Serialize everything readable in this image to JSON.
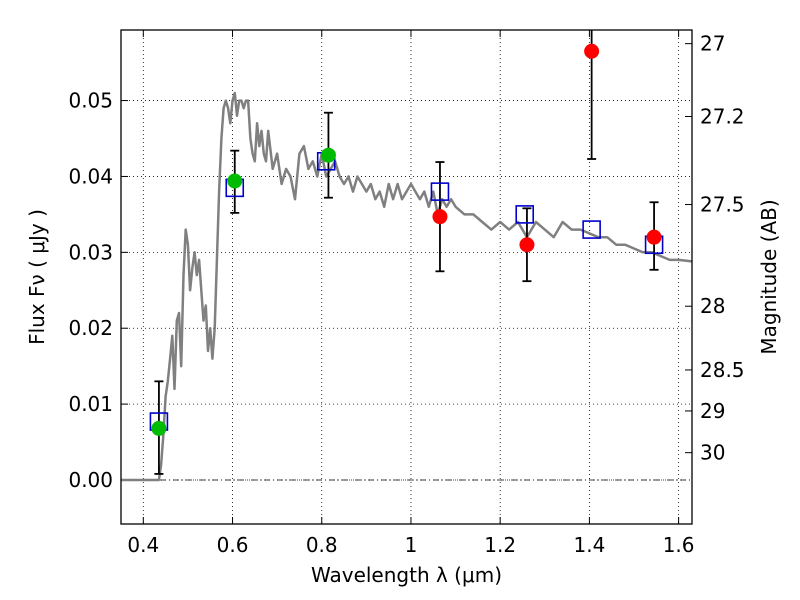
{
  "chart_data": {
    "type": "scatter",
    "xlabel": "Wavelength  λ (μm)",
    "ylabel": "Flux  Fν  ( μJy )",
    "ylabel_right": "Magnitude (AB)",
    "xlim": [
      0.35,
      1.63
    ],
    "ylim": [
      -0.0058,
      0.0593
    ],
    "grid": true,
    "x_ticks": [
      0.4,
      0.6,
      0.8,
      1.0,
      1.2,
      1.4,
      1.6
    ],
    "x_tick_labels": [
      "0.4",
      "0.6",
      "0.8",
      "1",
      "1.2",
      "1.4",
      "1.6"
    ],
    "y_ticks": [
      0.0,
      0.01,
      0.02,
      0.03,
      0.04,
      0.05
    ],
    "y_tick_labels": [
      "0.00",
      "0.01",
      "0.02",
      "0.03",
      "0.04",
      "0.05"
    ],
    "mag_ticks": [
      {
        "label": "27",
        "flux": 0.0575
      },
      {
        "label": "27.2",
        "flux": 0.0479
      },
      {
        "label": "27.5",
        "flux": 0.0363
      },
      {
        "label": "28",
        "flux": 0.0229
      },
      {
        "label": "28.5",
        "flux": 0.0145
      },
      {
        "label": "29",
        "flux": 0.0091
      },
      {
        "label": "30",
        "flux": 0.0036
      }
    ],
    "colors": {
      "model": "#808080",
      "model_points": "#0000cc",
      "green_points": "#00bb00",
      "red_points": "#ff0000",
      "error_bars": "#000000"
    },
    "series": [
      {
        "name": "model spectrum",
        "kind": "line",
        "x": [
          0.35,
          0.38,
          0.41,
          0.43,
          0.435,
          0.44,
          0.445,
          0.45,
          0.455,
          0.46,
          0.465,
          0.47,
          0.475,
          0.48,
          0.485,
          0.49,
          0.495,
          0.5,
          0.505,
          0.51,
          0.515,
          0.52,
          0.525,
          0.53,
          0.535,
          0.54,
          0.545,
          0.55,
          0.555,
          0.56,
          0.565,
          0.57,
          0.575,
          0.58,
          0.585,
          0.59,
          0.595,
          0.6,
          0.605,
          0.61,
          0.615,
          0.62,
          0.625,
          0.63,
          0.635,
          0.64,
          0.645,
          0.65,
          0.655,
          0.66,
          0.665,
          0.67,
          0.675,
          0.68,
          0.69,
          0.7,
          0.71,
          0.72,
          0.73,
          0.74,
          0.75,
          0.76,
          0.77,
          0.78,
          0.79,
          0.8,
          0.81,
          0.82,
          0.83,
          0.84,
          0.85,
          0.86,
          0.87,
          0.88,
          0.89,
          0.9,
          0.91,
          0.92,
          0.93,
          0.94,
          0.95,
          0.96,
          0.97,
          0.98,
          0.99,
          1.0,
          1.01,
          1.02,
          1.03,
          1.04,
          1.05,
          1.06,
          1.07,
          1.08,
          1.09,
          1.1,
          1.12,
          1.14,
          1.16,
          1.18,
          1.2,
          1.22,
          1.24,
          1.26,
          1.28,
          1.3,
          1.32,
          1.34,
          1.36,
          1.38,
          1.4,
          1.42,
          1.44,
          1.46,
          1.48,
          1.5,
          1.52,
          1.54,
          1.56,
          1.58,
          1.6,
          1.63
        ],
        "y": [
          0.0,
          0.0,
          0.0,
          0.0,
          0.0,
          0.002,
          0.006,
          0.011,
          0.013,
          0.016,
          0.019,
          0.012,
          0.021,
          0.022,
          0.015,
          0.027,
          0.033,
          0.031,
          0.025,
          0.028,
          0.03,
          0.027,
          0.029,
          0.025,
          0.021,
          0.023,
          0.017,
          0.02,
          0.016,
          0.02,
          0.029,
          0.038,
          0.045,
          0.049,
          0.05,
          0.049,
          0.047,
          0.05,
          0.051,
          0.048,
          0.05,
          0.05,
          0.049,
          0.05,
          0.05,
          0.045,
          0.043,
          0.042,
          0.047,
          0.044,
          0.046,
          0.043,
          0.042,
          0.046,
          0.041,
          0.043,
          0.039,
          0.041,
          0.04,
          0.037,
          0.043,
          0.044,
          0.041,
          0.042,
          0.04,
          0.043,
          0.04,
          0.041,
          0.042,
          0.04,
          0.039,
          0.04,
          0.038,
          0.04,
          0.039,
          0.038,
          0.039,
          0.037,
          0.038,
          0.036,
          0.039,
          0.037,
          0.039,
          0.037,
          0.038,
          0.039,
          0.038,
          0.037,
          0.038,
          0.036,
          0.038,
          0.035,
          0.037,
          0.036,
          0.037,
          0.036,
          0.035,
          0.035,
          0.034,
          0.033,
          0.034,
          0.033,
          0.034,
          0.032,
          0.034,
          0.033,
          0.032,
          0.034,
          0.033,
          0.033,
          0.0325,
          0.032,
          0.032,
          0.031,
          0.031,
          0.0305,
          0.03,
          0.03,
          0.0295,
          0.029,
          0.029,
          0.0288
        ]
      },
      {
        "name": "model photometry",
        "kind": "open-square",
        "x": [
          0.435,
          0.605,
          0.81,
          1.065,
          1.255,
          1.405,
          1.545
        ],
        "y": [
          0.0077,
          0.0385,
          0.042,
          0.038,
          0.035,
          0.033,
          0.031
        ]
      },
      {
        "name": "observed (green)",
        "kind": "filled-circle",
        "x": [
          0.435,
          0.605,
          0.815
        ],
        "y": [
          0.0068,
          0.0394,
          0.0428
        ],
        "yerr_low": [
          0.006,
          0.0042,
          0.0056
        ],
        "yerr_high": [
          0.0062,
          0.004,
          0.0056
        ]
      },
      {
        "name": "observed (red)",
        "kind": "filled-circle",
        "x": [
          1.065,
          1.26,
          1.405,
          1.545
        ],
        "y": [
          0.0347,
          0.031,
          0.0565,
          0.032
        ],
        "yerr_low": [
          0.0072,
          0.0048,
          0.0142,
          0.0043
        ],
        "yerr_high": [
          0.0072,
          0.0048,
          0.0035,
          0.0046
        ]
      }
    ]
  }
}
